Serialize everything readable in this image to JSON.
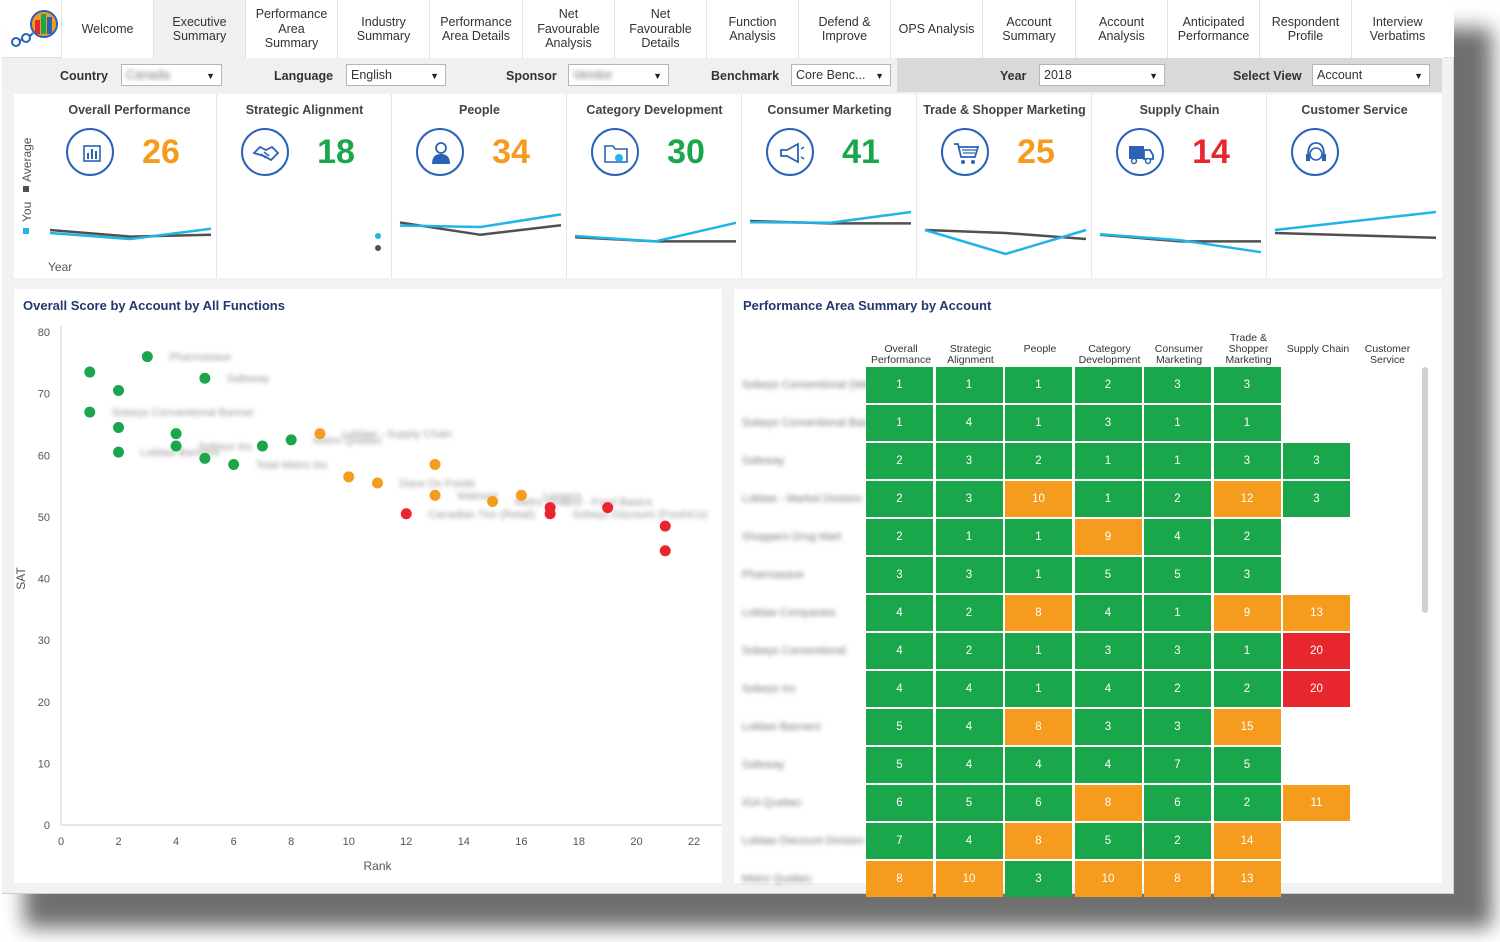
{
  "nav": {
    "tabs": [
      {
        "label": "Welcome",
        "active": false
      },
      {
        "label": "Executive Summary",
        "active": true
      },
      {
        "label": "Performance Area Summary",
        "active": false
      },
      {
        "label": "Industry Summary",
        "active": false
      },
      {
        "label": "Performance Area Details",
        "active": false
      },
      {
        "label": "Net Favourable Analysis",
        "active": false
      },
      {
        "label": "Net Favourable Details",
        "active": false
      },
      {
        "label": "Function Analysis",
        "active": false
      },
      {
        "label": "Defend & Improve",
        "active": false
      },
      {
        "label": "OPS Analysis",
        "active": false
      },
      {
        "label": "Account Summary",
        "active": false
      },
      {
        "label": "Account Analysis",
        "active": false
      },
      {
        "label": "Anticipated Performance",
        "active": false
      },
      {
        "label": "Respondent Profile",
        "active": false
      },
      {
        "label": "Interview Verbatims",
        "active": false
      }
    ]
  },
  "filters": {
    "country": {
      "label": "Country",
      "value": "Canada"
    },
    "language": {
      "label": "Language",
      "value": "English"
    },
    "sponsor": {
      "label": "Sponsor",
      "value": "Vendor"
    },
    "benchmark": {
      "label": "Benchmark",
      "value": "Core Benc..."
    },
    "year": {
      "label": "Year",
      "value": "2018"
    },
    "view": {
      "label": "Select View",
      "value": "Account"
    }
  },
  "kpi_legend": {
    "average": "Average",
    "you": "You",
    "x_label": "Year"
  },
  "colors": {
    "orange": "#f59b1d",
    "green": "#1aa64a",
    "red": "#e8262d",
    "you_line": "#21b4e8",
    "avg_line": "#505050",
    "icon_blue": "#2a62b8"
  },
  "kpis": [
    {
      "title": "Overall Performance",
      "value": "26",
      "color": "orange",
      "icon": "bar-chart-icon",
      "you": [
        0.3,
        0.1,
        0.44
      ],
      "avg": [
        0.4,
        0.18,
        0.24
      ]
    },
    {
      "title": "Strategic Alignment",
      "value": "18",
      "color": "green",
      "icon": "handshake-icon",
      "you": [],
      "avg": []
    },
    {
      "title": "People",
      "value": "34",
      "color": "orange",
      "icon": "person-icon",
      "you": [
        0.55,
        0.5,
        0.92
      ],
      "avg": [
        0.65,
        0.24,
        0.56
      ]
    },
    {
      "title": "Category Development",
      "value": "30",
      "color": "green",
      "icon": "folder-icon",
      "you": [
        0.2,
        0.02,
        0.64
      ],
      "avg": [
        0.16,
        0.02,
        0.02
      ]
    },
    {
      "title": "Consumer Marketing",
      "value": "41",
      "color": "green",
      "icon": "megaphone-icon",
      "you": [
        0.66,
        0.64,
        1.0
      ],
      "avg": [
        0.7,
        0.62,
        0.62
      ]
    },
    {
      "title": "Trade & Shopper Marketing",
      "value": "25",
      "color": "orange",
      "icon": "cart-icon",
      "you": [
        0.4,
        -0.4,
        0.4
      ],
      "avg": [
        0.4,
        0.3,
        0.1
      ]
    },
    {
      "title": "Supply Chain",
      "value": "14",
      "color": "red",
      "icon": "truck-icon",
      "you": [
        0.26,
        0.06,
        -0.34
      ],
      "avg": [
        0.24,
        0.02,
        0.02
      ]
    },
    {
      "title": "Customer Service",
      "value": "",
      "color": "green",
      "icon": "headset-icon",
      "you": [
        0.4,
        1.0
      ],
      "avg": [
        0.3,
        0.14
      ]
    }
  ],
  "scatter_panel": {
    "title": "Overall Score by Account by All Functions"
  },
  "heatmap_panel": {
    "title": "Performance Area Summary by Account"
  },
  "chart_data": [
    {
      "type": "scatter",
      "title": "Overall Score by Account by All Functions",
      "xlabel": "Rank",
      "ylabel": "SAT",
      "xlim": [
        0,
        22
      ],
      "ylim": [
        0,
        80
      ],
      "xticks": [
        "0",
        "2",
        "4",
        "6",
        "8",
        "10",
        "12",
        "14",
        "16",
        "18",
        "20",
        "22"
      ],
      "yticks": [
        "0",
        "10",
        "20",
        "30",
        "40",
        "50",
        "60",
        "70",
        "80"
      ],
      "points": [
        {
          "x": 1,
          "y": 73.5,
          "color": "green",
          "label": ""
        },
        {
          "x": 1,
          "y": 67,
          "color": "green",
          "label": "Sobeys Conventional Banner"
        },
        {
          "x": 2,
          "y": 70.5,
          "color": "green",
          "label": ""
        },
        {
          "x": 2,
          "y": 64.5,
          "color": "green",
          "label": ""
        },
        {
          "x": 2,
          "y": 60.5,
          "color": "green",
          "label": "Loblaw Banners"
        },
        {
          "x": 3,
          "y": 76,
          "color": "green",
          "label": "Pharmasave"
        },
        {
          "x": 4,
          "y": 63.5,
          "color": "green",
          "label": ""
        },
        {
          "x": 4,
          "y": 61.5,
          "color": "green",
          "label": "Sobeys Inc"
        },
        {
          "x": 5,
          "y": 72.5,
          "color": "green",
          "label": "Safeway"
        },
        {
          "x": 5,
          "y": 59.5,
          "color": "green",
          "label": ""
        },
        {
          "x": 6,
          "y": 58.5,
          "color": "green",
          "label": "Total Metro Inc"
        },
        {
          "x": 7,
          "y": 61.5,
          "color": "green",
          "label": ""
        },
        {
          "x": 8,
          "y": 62.5,
          "color": "green",
          "label": "Metro Quebec"
        },
        {
          "x": 9,
          "y": 63.5,
          "color": "orange",
          "label": "Loblaw - Supply Chain"
        },
        {
          "x": 10,
          "y": 56.5,
          "color": "orange",
          "label": ""
        },
        {
          "x": 11,
          "y": 55.5,
          "color": "orange",
          "label": "Dave Ds Foods"
        },
        {
          "x": 12,
          "y": 50.5,
          "color": "red",
          "label": "Canadian Tire (Retail)"
        },
        {
          "x": 13,
          "y": 58.5,
          "color": "orange",
          "label": ""
        },
        {
          "x": 13,
          "y": 53.5,
          "color": "orange",
          "label": "Walmart"
        },
        {
          "x": 15,
          "y": 52.5,
          "color": "orange",
          "label": "Metro Ontario - Food Basics"
        },
        {
          "x": 16,
          "y": 53.5,
          "color": "orange",
          "label": "Longo's"
        },
        {
          "x": 17,
          "y": 51.5,
          "color": "red",
          "label": ""
        },
        {
          "x": 17,
          "y": 50.5,
          "color": "red",
          "label": "Sobeys Discount (FreshCo)"
        },
        {
          "x": 19,
          "y": 51.5,
          "color": "red",
          "label": ""
        },
        {
          "x": 21,
          "y": 48.5,
          "color": "red",
          "label": ""
        },
        {
          "x": 21,
          "y": 44.5,
          "color": "red",
          "label": ""
        }
      ]
    },
    {
      "type": "heatmap",
      "title": "Performance Area Summary by Account",
      "columns": [
        "Overall Performance",
        "Strategic Alignment",
        "People",
        "Category Development",
        "Consumer Marketing",
        "Trade & Shopper Marketing",
        "Supply Chain",
        "Customer Service"
      ],
      "rows": [
        {
          "label": "Sobeys Conventional (West)",
          "values": [
            1,
            1,
            1,
            2,
            3,
            3,
            null,
            null
          ]
        },
        {
          "label": "Sobeys Conventional Banner",
          "values": [
            1,
            4,
            1,
            3,
            1,
            1,
            null,
            null
          ]
        },
        {
          "label": "Safeway",
          "values": [
            2,
            3,
            2,
            1,
            1,
            3,
            3,
            null
          ]
        },
        {
          "label": "Loblaw - Market Division",
          "values": [
            2,
            3,
            10,
            1,
            2,
            12,
            3,
            null
          ]
        },
        {
          "label": "Shoppers Drug Mart",
          "values": [
            2,
            1,
            1,
            9,
            4,
            2,
            null,
            null
          ]
        },
        {
          "label": "Pharmasave",
          "values": [
            3,
            3,
            1,
            5,
            5,
            3,
            null,
            null
          ]
        },
        {
          "label": "Loblaw Companies",
          "values": [
            4,
            2,
            8,
            4,
            1,
            9,
            13,
            null
          ]
        },
        {
          "label": "Sobeys Conventional",
          "values": [
            4,
            2,
            1,
            3,
            3,
            1,
            20,
            null
          ]
        },
        {
          "label": "Sobeys Inc",
          "values": [
            4,
            4,
            1,
            4,
            2,
            2,
            20,
            null
          ]
        },
        {
          "label": "Loblaw Banners",
          "values": [
            5,
            4,
            8,
            3,
            3,
            15,
            null,
            null
          ]
        },
        {
          "label": "Safeway",
          "values": [
            5,
            4,
            4,
            4,
            7,
            5,
            null,
            null
          ]
        },
        {
          "label": "IGA Quebec",
          "values": [
            6,
            5,
            6,
            8,
            6,
            2,
            11,
            null
          ]
        },
        {
          "label": "Loblaw Discount Division",
          "values": [
            7,
            4,
            8,
            5,
            2,
            14,
            null,
            null
          ]
        },
        {
          "label": "Metro Quebec",
          "values": [
            8,
            10,
            3,
            10,
            8,
            13,
            null,
            null
          ]
        }
      ],
      "color_rule": {
        "green": "1-7",
        "orange": "8-15",
        "red": "16+"
      }
    }
  ]
}
